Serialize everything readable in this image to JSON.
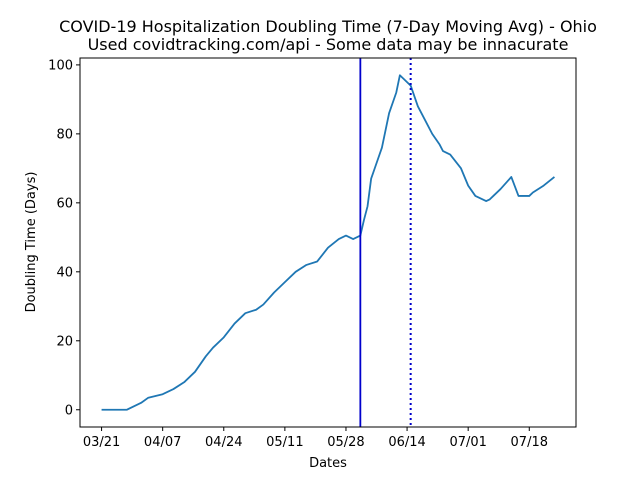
{
  "chart_data": {
    "type": "line",
    "title": "COVID-19 Hospitalization Doubling Time (7-Day Moving Avg) - Ohio",
    "subtitle": "Used covidtracking.com/api - Some data may be innacurate",
    "xlabel": "Dates",
    "ylabel": "Doubling Time (Days)",
    "x_ticks": [
      "03/21",
      "04/07",
      "04/24",
      "05/11",
      "05/28",
      "06/14",
      "07/01",
      "07/18"
    ],
    "xlim": [
      "2020-03-15",
      "2020-07-31"
    ],
    "ylim": [
      -5,
      102
    ],
    "y_ticks": [
      0,
      20,
      40,
      60,
      80,
      100
    ],
    "grid": false,
    "colors": {
      "line": "#1f77b4",
      "solid_vline": "#0000cc",
      "dotted_vline": "#0000cc"
    },
    "vlines": [
      {
        "x": "2020-06-01",
        "style": "solid"
      },
      {
        "x": "2020-06-15",
        "style": "dotted"
      }
    ],
    "series": [
      {
        "x": [
          "2020-03-21",
          "2020-03-24",
          "2020-03-28",
          "2020-04-01",
          "2020-04-03",
          "2020-04-07",
          "2020-04-10",
          "2020-04-13",
          "2020-04-16",
          "2020-04-19",
          "2020-04-21",
          "2020-04-24",
          "2020-04-27",
          "2020-04-30",
          "2020-05-03",
          "2020-05-05",
          "2020-05-08",
          "2020-05-11",
          "2020-05-14",
          "2020-05-17",
          "2020-05-20",
          "2020-05-23",
          "2020-05-26",
          "2020-05-28",
          "2020-05-30",
          "2020-06-01",
          "2020-06-02",
          "2020-06-03",
          "2020-06-04",
          "2020-06-05",
          "2020-06-07",
          "2020-06-09",
          "2020-06-11",
          "2020-06-12",
          "2020-06-15",
          "2020-06-17",
          "2020-06-19",
          "2020-06-21",
          "2020-06-23",
          "2020-06-24",
          "2020-06-26",
          "2020-06-29",
          "2020-07-01",
          "2020-07-03",
          "2020-07-06",
          "2020-07-07",
          "2020-07-08",
          "2020-07-10",
          "2020-07-13",
          "2020-07-15",
          "2020-07-16",
          "2020-07-18",
          "2020-07-19",
          "2020-07-22",
          "2020-07-25"
        ],
        "values": [
          0,
          0,
          0,
          2,
          3.5,
          4.5,
          6,
          8,
          11,
          15.5,
          18,
          21,
          25,
          28,
          29,
          30.5,
          34,
          37,
          40,
          42,
          43,
          47,
          49.5,
          50.5,
          49.5,
          50.5,
          55,
          59,
          67,
          70,
          76,
          86,
          92,
          97,
          94,
          88,
          84,
          80,
          77,
          75,
          74,
          70,
          65,
          62,
          60.5,
          61,
          62,
          64,
          67.5,
          62,
          62,
          62,
          63,
          65,
          67.5
        ]
      }
    ]
  }
}
